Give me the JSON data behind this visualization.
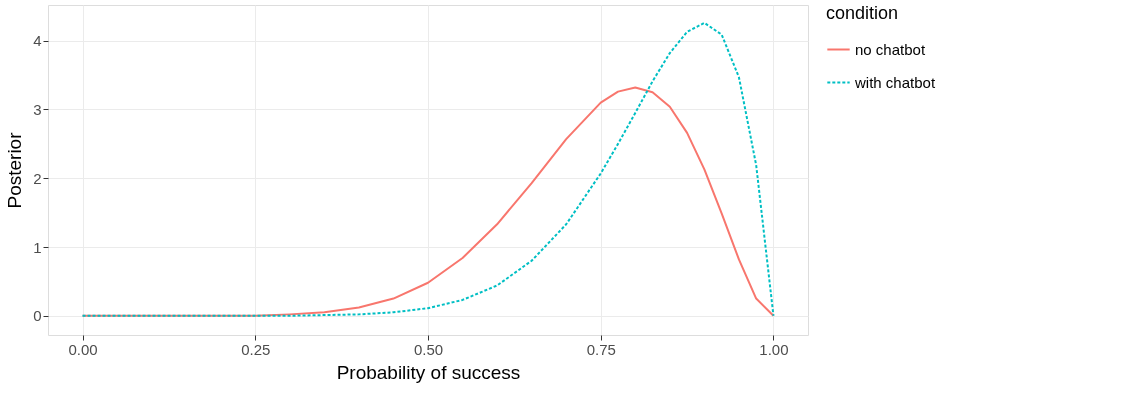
{
  "chart_data": {
    "type": "line",
    "xlabel": "Probability of success",
    "ylabel": "Posterior",
    "legend_title": "condition",
    "x": [
      0,
      0.05,
      0.1,
      0.15,
      0.2,
      0.25,
      0.3,
      0.35,
      0.4,
      0.45,
      0.5,
      0.55,
      0.6,
      0.65,
      0.7,
      0.75,
      0.775,
      0.8,
      0.825,
      0.85,
      0.875,
      0.9,
      0.925,
      0.95,
      0.975,
      1
    ],
    "series": [
      {
        "name": "no chatbot",
        "color": "#f8766d",
        "line_style": "solid",
        "values": [
          0,
          0,
          0,
          0,
          0,
          0,
          0.02,
          0.05,
          0.12,
          0.25,
          0.48,
          0.84,
          1.33,
          1.93,
          2.57,
          3.1,
          3.26,
          3.32,
          3.25,
          3.04,
          2.66,
          2.13,
          1.49,
          0.82,
          0.25,
          0
        ]
      },
      {
        "name": "with chatbot",
        "color": "#00bfc4",
        "line_style": "dashed",
        "values": [
          0,
          0,
          0,
          0,
          0,
          0,
          0,
          0.01,
          0.02,
          0.05,
          0.11,
          0.23,
          0.44,
          0.8,
          1.33,
          2.07,
          2.5,
          2.95,
          3.41,
          3.82,
          4.13,
          4.26,
          4.09,
          3.47,
          2.19,
          0
        ]
      }
    ],
    "xlim": [
      -0.05,
      1.05
    ],
    "xticks": [
      {
        "value": 0,
        "label": "0.00"
      },
      0.25,
      {
        "value": 0.5,
        "label": "0.50"
      },
      0.75,
      {
        "value": 1,
        "label": "1.00"
      }
    ],
    "ylim": [
      -0.28,
      4.52
    ],
    "yticks": [
      0,
      1,
      2,
      3,
      4
    ],
    "grid": true,
    "legend": "right"
  }
}
